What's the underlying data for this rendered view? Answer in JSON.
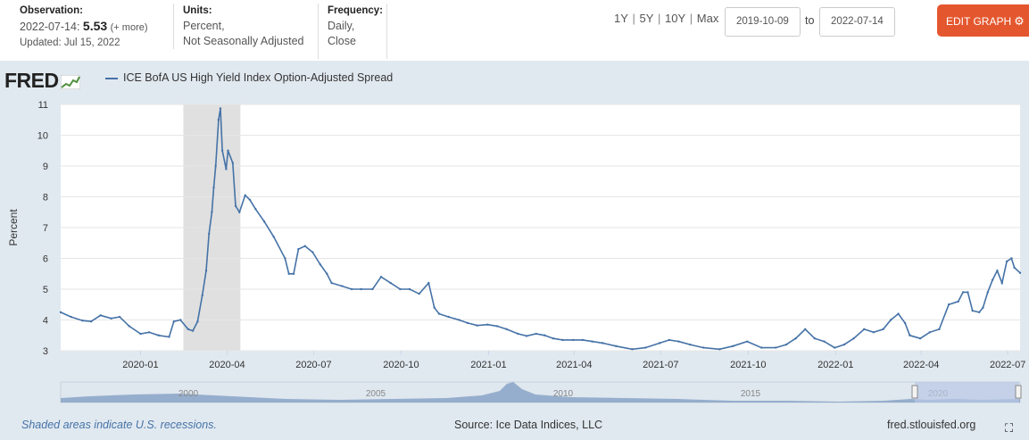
{
  "header": {
    "observation_title": "Observation:",
    "observation_date": "2022-07-14:",
    "observation_value": "5.53",
    "observation_more": "(+ more)",
    "observation_updated": "Updated: Jul 15, 2022",
    "units_title": "Units:",
    "units_line1": "Percent,",
    "units_line2": "Not Seasonally Adjusted",
    "frequency_title": "Frequency:",
    "frequency_line1": "Daily,",
    "frequency_line2": "Close",
    "range_links": [
      "1Y",
      "5Y",
      "10Y",
      "Max"
    ],
    "date_from": "2019-10-09",
    "to_label": "to",
    "date_to": "2022-07-14",
    "edit_button": "EDIT GRAPH"
  },
  "logo": "FRED",
  "legend": {
    "label": "ICE BofA US High Yield Index Option-Adjusted Spread",
    "color": "#4572a7"
  },
  "footer": {
    "note": "Shaded areas indicate U.S. recessions.",
    "source": "Source: Ice Data Indices, LLC",
    "site": "fred.stlouisfed.org"
  },
  "colors": {
    "line": "#4572a7",
    "recession": "#e0e0e0",
    "panel": "#e1e9f0",
    "button": "#e4572e"
  },
  "chart_data": {
    "type": "line",
    "title": "",
    "ylabel": "Percent",
    "xlabel": "",
    "ylim": [
      3,
      11
    ],
    "yticks": [
      3,
      4,
      5,
      6,
      7,
      8,
      9,
      10,
      11
    ],
    "xrange": [
      "2019-10-09",
      "2022-07-14"
    ],
    "xticks": [
      "2020-01",
      "2020-04",
      "2020-07",
      "2020-10",
      "2021-01",
      "2021-04",
      "2021-07",
      "2021-10",
      "2022-01",
      "2022-04",
      "2022-07"
    ],
    "grid": true,
    "recession": [
      "2020-02-15",
      "2020-04-15"
    ],
    "navigator_labels": [
      "2000",
      "2005",
      "2010",
      "2015",
      "2020"
    ],
    "series": [
      {
        "name": "ICE BofA US High Yield Index Option-Adjusted Spread",
        "x": [
          "2019-10-09",
          "2019-10-20",
          "2019-11-01",
          "2019-11-10",
          "2019-11-20",
          "2019-12-01",
          "2019-12-10",
          "2019-12-20",
          "2020-01-01",
          "2020-01-10",
          "2020-01-20",
          "2020-01-31",
          "2020-02-05",
          "2020-02-12",
          "2020-02-20",
          "2020-02-25",
          "2020-03-01",
          "2020-03-06",
          "2020-03-10",
          "2020-03-13",
          "2020-03-16",
          "2020-03-18",
          "2020-03-20",
          "2020-03-23",
          "2020-03-25",
          "2020-03-27",
          "2020-03-31",
          "2020-04-02",
          "2020-04-07",
          "2020-04-10",
          "2020-04-14",
          "2020-04-20",
          "2020-04-25",
          "2020-05-01",
          "2020-05-10",
          "2020-05-20",
          "2020-06-01",
          "2020-06-05",
          "2020-06-10",
          "2020-06-15",
          "2020-06-22",
          "2020-06-30",
          "2020-07-08",
          "2020-07-15",
          "2020-07-20",
          "2020-07-31",
          "2020-08-10",
          "2020-08-20",
          "2020-09-01",
          "2020-09-10",
          "2020-09-20",
          "2020-09-30",
          "2020-10-10",
          "2020-10-20",
          "2020-10-30",
          "2020-11-05",
          "2020-11-10",
          "2020-11-20",
          "2020-12-01",
          "2020-12-10",
          "2020-12-20",
          "2020-12-31",
          "2021-01-10",
          "2021-01-20",
          "2021-02-01",
          "2021-02-10",
          "2021-02-20",
          "2021-03-01",
          "2021-03-10",
          "2021-03-20",
          "2021-03-31",
          "2021-04-10",
          "2021-04-20",
          "2021-05-01",
          "2021-05-15",
          "2021-06-01",
          "2021-06-15",
          "2021-06-30",
          "2021-07-10",
          "2021-07-20",
          "2021-08-01",
          "2021-08-15",
          "2021-09-01",
          "2021-09-15",
          "2021-09-30",
          "2021-10-15",
          "2021-10-30",
          "2021-11-10",
          "2021-11-20",
          "2021-11-30",
          "2021-12-10",
          "2021-12-20",
          "2021-12-31",
          "2022-01-10",
          "2022-01-20",
          "2022-01-31",
          "2022-02-10",
          "2022-02-20",
          "2022-02-28",
          "2022-03-08",
          "2022-03-15",
          "2022-03-20",
          "2022-03-31",
          "2022-04-10",
          "2022-04-20",
          "2022-04-30",
          "2022-05-10",
          "2022-05-15",
          "2022-05-20",
          "2022-05-25",
          "2022-06-01",
          "2022-06-05",
          "2022-06-10",
          "2022-06-15",
          "2022-06-20",
          "2022-06-25",
          "2022-06-30",
          "2022-07-05",
          "2022-07-08",
          "2022-07-14"
        ],
        "y": [
          4.25,
          4.1,
          3.98,
          3.95,
          4.15,
          4.05,
          4.1,
          3.8,
          3.55,
          3.6,
          3.5,
          3.45,
          3.95,
          4.0,
          3.7,
          3.65,
          3.95,
          4.8,
          5.6,
          6.8,
          7.5,
          8.3,
          9.0,
          10.5,
          10.87,
          9.5,
          8.9,
          9.5,
          9.1,
          7.7,
          7.5,
          8.05,
          7.9,
          7.6,
          7.2,
          6.7,
          6.0,
          5.5,
          5.5,
          6.3,
          6.4,
          6.2,
          5.8,
          5.5,
          5.2,
          5.1,
          5.0,
          5.0,
          5.0,
          5.4,
          5.2,
          5.0,
          5.0,
          4.85,
          5.2,
          4.4,
          4.2,
          4.1,
          4.0,
          3.9,
          3.82,
          3.85,
          3.8,
          3.7,
          3.55,
          3.48,
          3.55,
          3.5,
          3.4,
          3.35,
          3.35,
          3.35,
          3.3,
          3.25,
          3.15,
          3.05,
          3.1,
          3.25,
          3.35,
          3.3,
          3.2,
          3.1,
          3.05,
          3.15,
          3.3,
          3.1,
          3.1,
          3.2,
          3.4,
          3.7,
          3.4,
          3.3,
          3.1,
          3.2,
          3.4,
          3.7,
          3.6,
          3.7,
          4.0,
          4.2,
          3.9,
          3.5,
          3.4,
          3.6,
          3.7,
          4.5,
          4.6,
          4.9,
          4.9,
          4.3,
          4.25,
          4.4,
          4.9,
          5.3,
          5.6,
          5.2,
          5.9,
          6.0,
          5.7,
          5.53
        ]
      }
    ]
  }
}
